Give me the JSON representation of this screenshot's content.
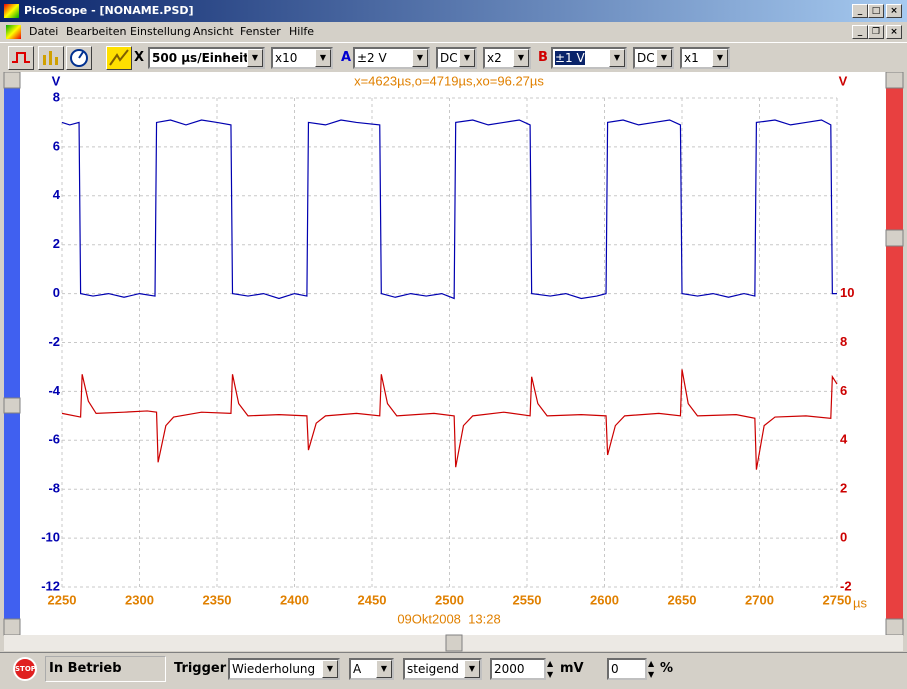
{
  "window": {
    "title": "PicoScope - [NONAME.PSD]"
  },
  "menu": [
    "Datei",
    "Bearbeiten",
    "Einstellung",
    "Ansicht",
    "Fenster",
    "Hilfe"
  ],
  "toolbar": {
    "x_label": "X",
    "timebase": "500 µs/Einheit",
    "zoom": "x10",
    "channel_a": "A",
    "range_a": "±2 V",
    "coupling_a": "DC",
    "gain_a": "x2",
    "channel_b": "B",
    "range_b": "±1 V",
    "coupling_b": "DC",
    "gain_b": "x1"
  },
  "chart_data": {
    "type": "line",
    "annotation": "x=4623µs,o=4719µs,xo=96.27µs",
    "timestamp": "09Okt2008  13:28",
    "x_label": "µs",
    "y_label": "V",
    "y2_label": "V",
    "xlim": [
      2250,
      2750
    ],
    "xticks": [
      2250,
      2300,
      2350,
      2400,
      2450,
      2500,
      2550,
      2600,
      2650,
      2700,
      2750
    ],
    "ylim": [
      -12,
      8
    ],
    "yticks": [
      -12,
      -10,
      -8,
      -6,
      -4,
      -2,
      0,
      2,
      4,
      6,
      8
    ],
    "y2lim": [
      -2,
      18
    ],
    "y2ticks": [
      -2,
      0,
      2,
      4,
      6,
      8,
      10
    ],
    "grid": true,
    "series": [
      {
        "color": "#0000b0",
        "x": [
          2250,
          2255,
          2261,
          2262,
          2270,
          2280,
          2290,
          2300,
          2310,
          2311,
          2320,
          2330,
          2340,
          2350,
          2359,
          2360,
          2370,
          2380,
          2390,
          2400,
          2408,
          2409,
          2420,
          2430,
          2440,
          2455,
          2456,
          2465,
          2475,
          2485,
          2495,
          2503,
          2504,
          2515,
          2525,
          2535,
          2545,
          2552,
          2553,
          2565,
          2575,
          2585,
          2595,
          2601,
          2602,
          2612,
          2622,
          2632,
          2642,
          2649,
          2650,
          2660,
          2670,
          2680,
          2690,
          2697,
          2698,
          2710,
          2720,
          2730,
          2740,
          2746,
          2747,
          2750
        ],
        "values": [
          7.0,
          6.9,
          7.0,
          0.0,
          -0.1,
          0.0,
          -0.15,
          0.0,
          -0.1,
          7.0,
          7.1,
          6.9,
          7.1,
          7.0,
          6.9,
          0.0,
          -0.1,
          0.0,
          -0.2,
          0.0,
          -0.1,
          7.0,
          6.9,
          7.1,
          7.0,
          6.9,
          0.0,
          -0.15,
          0.0,
          -0.1,
          0.0,
          -0.2,
          7.0,
          7.1,
          6.9,
          7.0,
          7.1,
          6.9,
          0.0,
          -0.1,
          0.0,
          -0.2,
          -0.1,
          0.0,
          7.0,
          7.1,
          6.9,
          7.0,
          7.1,
          6.9,
          0.0,
          -0.1,
          0.0,
          -0.15,
          0.0,
          -0.1,
          7.0,
          7.1,
          6.9,
          7.0,
          7.1,
          6.9,
          0.0,
          0.0
        ]
      },
      {
        "color": "#cc0000",
        "axis": "y2",
        "x": [
          2250,
          2262,
          2263,
          2267,
          2272,
          2290,
          2305,
          2311,
          2312,
          2317,
          2322,
          2340,
          2359,
          2360,
          2364,
          2370,
          2390,
          2408,
          2409,
          2414,
          2420,
          2440,
          2455,
          2456,
          2460,
          2466,
          2490,
          2503,
          2504,
          2509,
          2515,
          2535,
          2552,
          2553,
          2557,
          2563,
          2585,
          2601,
          2602,
          2607,
          2613,
          2635,
          2649,
          2650,
          2654,
          2660,
          2685,
          2697,
          2698,
          2703,
          2710,
          2730,
          2746,
          2747,
          2750
        ],
        "values": [
          5.1,
          4.95,
          6.7,
          5.6,
          5.1,
          5.15,
          5.2,
          5.15,
          3.1,
          4.6,
          4.95,
          5.15,
          5.1,
          6.7,
          5.5,
          5.0,
          5.05,
          5.0,
          3.6,
          4.7,
          5.0,
          5.1,
          5.0,
          6.7,
          5.5,
          5.0,
          5.1,
          5.0,
          2.9,
          4.6,
          5.0,
          5.15,
          5.0,
          6.6,
          5.5,
          5.0,
          5.05,
          5.0,
          3.4,
          4.6,
          5.0,
          5.1,
          5.0,
          6.9,
          5.5,
          5.0,
          5.05,
          4.9,
          2.8,
          4.6,
          4.95,
          5.0,
          4.9,
          6.6,
          6.3
        ]
      }
    ]
  },
  "status": {
    "state": "In Betrieb",
    "trigger_label": "Trigger",
    "trigger_mode": "Wiederholung",
    "trigger_channel": "A",
    "trigger_edge": "steigend",
    "threshold": 2000,
    "threshold_unit": "mV",
    "delay": 0,
    "delay_unit": "%"
  }
}
